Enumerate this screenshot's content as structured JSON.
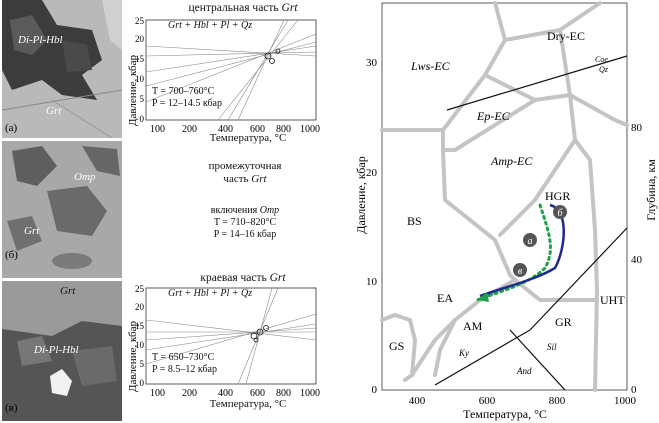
{
  "photos": [
    {
      "label": "(а)",
      "grt": "Grt",
      "other": "Di-Pl-Hbl"
    },
    {
      "label": "(б)",
      "grt": "Grt",
      "other": "Omp"
    },
    {
      "label": "(в)",
      "grt": "Grt",
      "other": "Di-Pl-Hbl"
    }
  ],
  "small_plots": [
    {
      "title_prefix": "центральная часть ",
      "title_italic": "Grt",
      "reaction": "Grt + Hbl + Pl + Qz",
      "t_text": "T = 700–760°C",
      "p_text": "P = 12–14.5 кбар",
      "xlabel": "Температура, °C",
      "ylabel": "Давление, кбар",
      "xticks": [
        "100",
        "200",
        "400",
        "600",
        "800",
        "1000"
      ],
      "yticks": [
        "0",
        "5",
        "10",
        "15",
        "20",
        "25"
      ]
    },
    {
      "title_prefix": "краевая часть ",
      "title_italic": "Grt",
      "reaction": "Grt + Hbl + Pl + Qz",
      "t_text": "T = 650–730°C",
      "p_text": "P = 8.5–12 кбар",
      "xlabel": "Температура, °C",
      "ylabel": "Давление, кбар",
      "xticks": [
        "100",
        "200",
        "400",
        "600",
        "800",
        "1000"
      ],
      "yticks": [
        "0",
        "5",
        "10",
        "15",
        "20",
        "25"
      ]
    }
  ],
  "middle_note": {
    "line1": "промежуточная",
    "line2_prefix": "часть ",
    "line2_italic": "Grt",
    "incl_prefix": "включения ",
    "incl_italic": "Omp",
    "t_text": "T = 710–820°C",
    "p_text": "P = 14–16 кбар"
  },
  "chart_data": {
    "type": "line",
    "xlabel": "Температура, °C",
    "ylabel": "Давление, кбар",
    "y2label": "Глубина, км",
    "xlim": [
      300,
      1000
    ],
    "ylim": [
      0,
      35
    ],
    "xticks": [
      "400",
      "600",
      "800",
      "1000"
    ],
    "yticks": [
      "0",
      "10",
      "20",
      "30"
    ],
    "y2ticks": [
      "0",
      "40",
      "80"
    ],
    "facies_labels": [
      "Dry-EC",
      "Lws-EC",
      "Ep-EC",
      "Amp-EC",
      "HGR",
      "BS",
      "EA",
      "AM",
      "GR",
      "UHT",
      "GS"
    ],
    "mineral_labels": [
      "Coe",
      "Qz",
      "Ky",
      "Sil",
      "And"
    ],
    "points": [
      {
        "label": "а",
        "t": 720,
        "p": 13.5
      },
      {
        "label": "б",
        "t": 800,
        "p": 16.0
      },
      {
        "label": "в",
        "t": 710,
        "p": 10.8
      }
    ],
    "path_solid": [
      [
        775,
        17.5
      ],
      [
        830,
        16.0
      ],
      [
        800,
        12.0
      ],
      [
        710,
        10.2
      ],
      [
        620,
        8.8
      ]
    ],
    "path_dotted": [
      [
        745,
        17.2
      ],
      [
        760,
        14.0
      ],
      [
        740,
        10.5
      ],
      [
        680,
        9.0
      ],
      [
        610,
        7.8
      ]
    ]
  }
}
